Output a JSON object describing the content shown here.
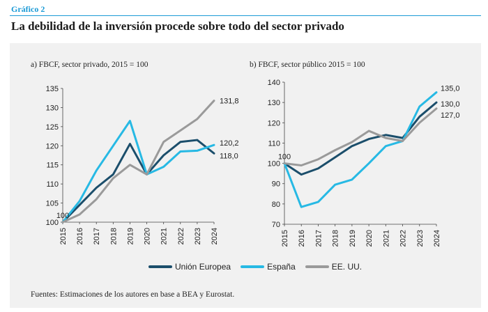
{
  "header": {
    "figure_label": "Gráfico 2",
    "title": "La debilidad de la inversión procede sobre todo del sector privado"
  },
  "legend": {
    "items": [
      {
        "name": "Unión Europea",
        "color": "#1b4e6b"
      },
      {
        "name": "España",
        "color": "#27b9e4"
      },
      {
        "name": "EE. UU.",
        "color": "#9a9a9a"
      }
    ]
  },
  "footer": {
    "source": "Fuentes: Estimaciones de los autores en base a BEA y Eurostat."
  },
  "chart_data": [
    {
      "type": "line",
      "title": "a) FBCF, sector privado, 2015 = 100",
      "x": [
        "2015",
        "2016",
        "2017",
        "2018",
        "2019",
        "2020",
        "2021",
        "2022",
        "2023",
        "2024"
      ],
      "ylim": [
        100,
        135
      ],
      "yticks": [
        100,
        105,
        110,
        115,
        120,
        125,
        130,
        135
      ],
      "series": [
        {
          "name": "Unión Europea",
          "color": "#1b4e6b",
          "values": [
            100,
            104.5,
            109,
            112.5,
            120.5,
            112.5,
            117.5,
            121,
            121.5,
            118.0
          ]
        },
        {
          "name": "España",
          "color": "#27b9e4",
          "values": [
            100,
            105.5,
            113.5,
            120,
            126.5,
            112.5,
            114.5,
            118.5,
            118.7,
            120.2
          ]
        },
        {
          "name": "EE. UU.",
          "color": "#9a9a9a",
          "values": [
            100,
            102,
            106,
            111.5,
            115,
            112.5,
            121,
            124,
            127,
            131.8
          ]
        }
      ],
      "annotations": [
        {
          "text": "100",
          "x": "2015",
          "y": 100
        },
        {
          "text": "131,8",
          "series": "EE. UU."
        },
        {
          "text": "120,2",
          "series": "España"
        },
        {
          "text": "118,0",
          "series": "Unión Europea"
        }
      ]
    },
    {
      "type": "line",
      "title": "b) FBCF, sector público 2015 = 100",
      "x": [
        "2015",
        "2016",
        "2017",
        "2018",
        "2019",
        "2020",
        "2021",
        "2022",
        "2023",
        "2024"
      ],
      "ylim": [
        70,
        140
      ],
      "yticks": [
        70,
        80,
        90,
        100,
        110,
        120,
        130,
        140
      ],
      "series": [
        {
          "name": "Unión Europea",
          "color": "#1b4e6b",
          "values": [
            100,
            94.5,
            97.5,
            103,
            108.5,
            112,
            114,
            112.5,
            123,
            130.0
          ]
        },
        {
          "name": "España",
          "color": "#27b9e4",
          "values": [
            100,
            78.5,
            81,
            89.5,
            92,
            100,
            108.5,
            111,
            128,
            135.0
          ]
        },
        {
          "name": "EE. UU.",
          "color": "#9a9a9a",
          "values": [
            100,
            99,
            102,
            106.5,
            110.5,
            116,
            112.5,
            111,
            120,
            127.0
          ]
        }
      ],
      "annotations": [
        {
          "text": "100",
          "x": "2015",
          "y": 100
        },
        {
          "text": "135,0",
          "series": "España"
        },
        {
          "text": "130,0",
          "series": "Unión Europea"
        },
        {
          "text": "127,0",
          "series": "EE. UU."
        }
      ]
    }
  ]
}
